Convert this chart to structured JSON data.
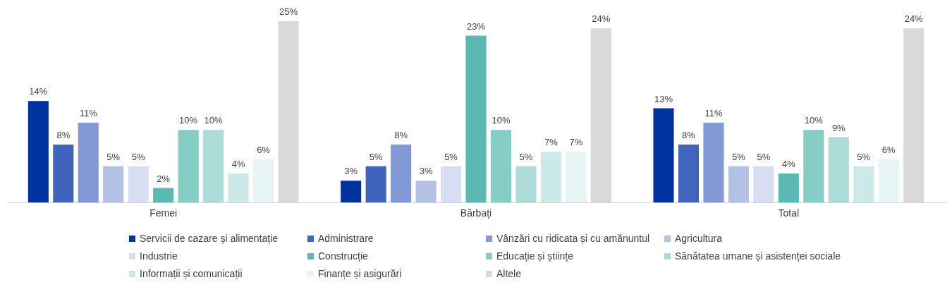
{
  "chart_data": {
    "type": "bar",
    "categories": [
      "Femei",
      "Bărbați",
      "Total"
    ],
    "grid": false,
    "legend": "bottom",
    "series": [
      {
        "name": "Servicii de cazare și alimentație",
        "color": "#0033a0",
        "values": [
          14,
          3,
          13
        ],
        "value_labels": [
          "14%",
          "3%",
          "13%"
        ]
      },
      {
        "name": "Administrare",
        "color": "#4064b9",
        "values": [
          8,
          5,
          8
        ],
        "value_labels": [
          "8%",
          "5%",
          "8%"
        ]
      },
      {
        "name": "Vânzări cu ridicata și cu amănuntul",
        "color": "#8299d5",
        "values": [
          11,
          8,
          11
        ],
        "value_labels": [
          "11%",
          "8%",
          "11%"
        ]
      },
      {
        "name": "Agricultura",
        "color": "#b3c1e4",
        "values": [
          5,
          3,
          5
        ],
        "value_labels": [
          "5%",
          "3%",
          "5%"
        ]
      },
      {
        "name": "Industrie",
        "color": "#d9dff2",
        "values": [
          5,
          5,
          5
        ],
        "value_labels": [
          "5%",
          "5%",
          "5%"
        ]
      },
      {
        "name": "Construcție",
        "color": "#5bb8b2",
        "values": [
          2,
          23,
          4
        ],
        "value_labels": [
          "2%",
          "23%",
          "4%"
        ]
      },
      {
        "name": "Educație și științe",
        "color": "#86cdc6",
        "values": [
          10,
          10,
          10
        ],
        "value_labels": [
          "10%",
          "10%",
          "10%"
        ]
      },
      {
        "name": "Sănătatea umane și asistenței sociale",
        "color": "#addcd8",
        "values": [
          10,
          5,
          9
        ],
        "value_labels": [
          "10%",
          "5%",
          "9%"
        ]
      },
      {
        "name": "Informații și comunicații",
        "color": "#cde9e7",
        "values": [
          4,
          7,
          5
        ],
        "value_labels": [
          "4%",
          "7%",
          "5%"
        ]
      },
      {
        "name": "Finanțe și asigurări",
        "color": "#e6f4f3",
        "values": [
          6,
          7,
          6
        ],
        "value_labels": [
          "6%",
          "7%",
          "6%"
        ]
      },
      {
        "name": "Altele",
        "color": "#d9d9d9",
        "values": [
          25,
          24,
          24
        ],
        "value_labels": [
          "25%",
          "24%",
          "24%"
        ]
      }
    ]
  }
}
